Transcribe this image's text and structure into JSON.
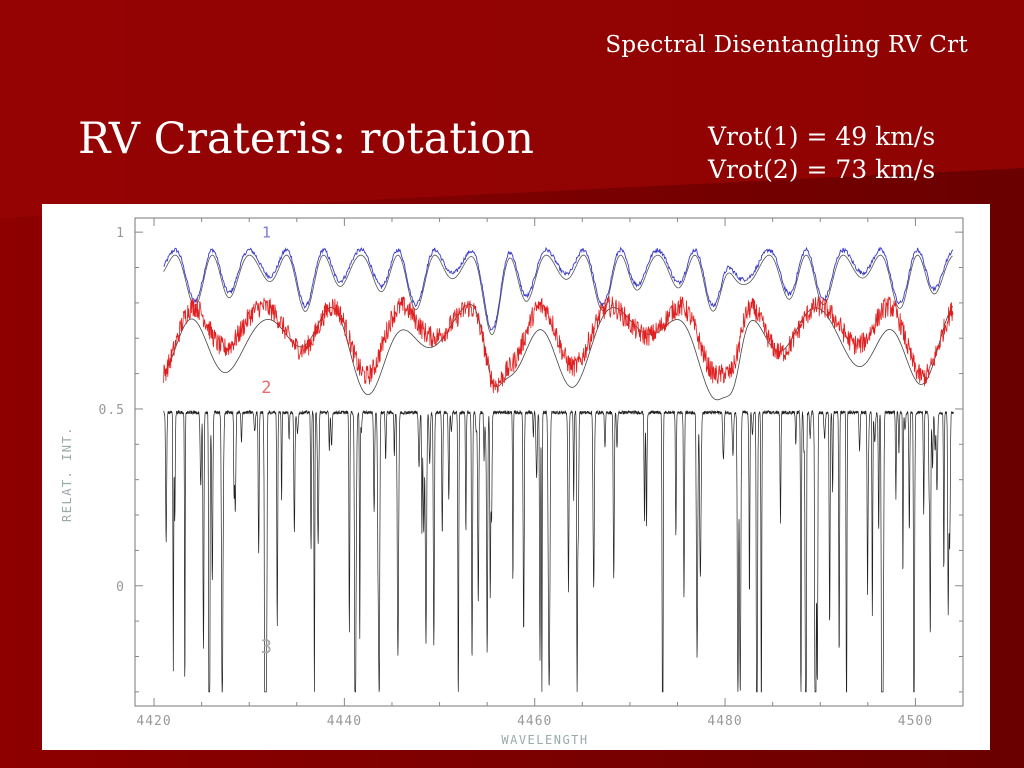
{
  "slide": {
    "header": "Spectral Disentangling RV Crt",
    "title": "RV Crateris: rotation",
    "vrot_lines": [
      "Vrot(1) = 49 km/s",
      "Vrot(2) = 73 km/s"
    ]
  },
  "colors": {
    "background": "#7a0000",
    "series_1": "#3a3ac8",
    "series_2": "#e02020",
    "model": "#333333"
  },
  "chart_data": {
    "type": "line",
    "xlabel": "WAVELENGTH",
    "ylabel": "RELAT. INT.",
    "xlim": [
      4418,
      4505
    ],
    "ylim": [
      -0.34,
      1.04
    ],
    "x_ticks": [
      "4420",
      "4440",
      "4460",
      "4480",
      "4500"
    ],
    "y_ticks": [
      "1",
      "0.5",
      "0"
    ],
    "grid": false,
    "series": [
      {
        "label": "1",
        "color": "#3a3ac8",
        "offset": 0.91,
        "depth": 0.16,
        "style": "noisy-blue"
      },
      {
        "label": "2",
        "color": "#e02020",
        "offset": 0.72,
        "depth": 0.2,
        "style": "noisy-red"
      },
      {
        "label": "3",
        "color": "#222222",
        "offset": 0.49,
        "depth": 0.75,
        "style": "sharp-lines"
      }
    ]
  }
}
